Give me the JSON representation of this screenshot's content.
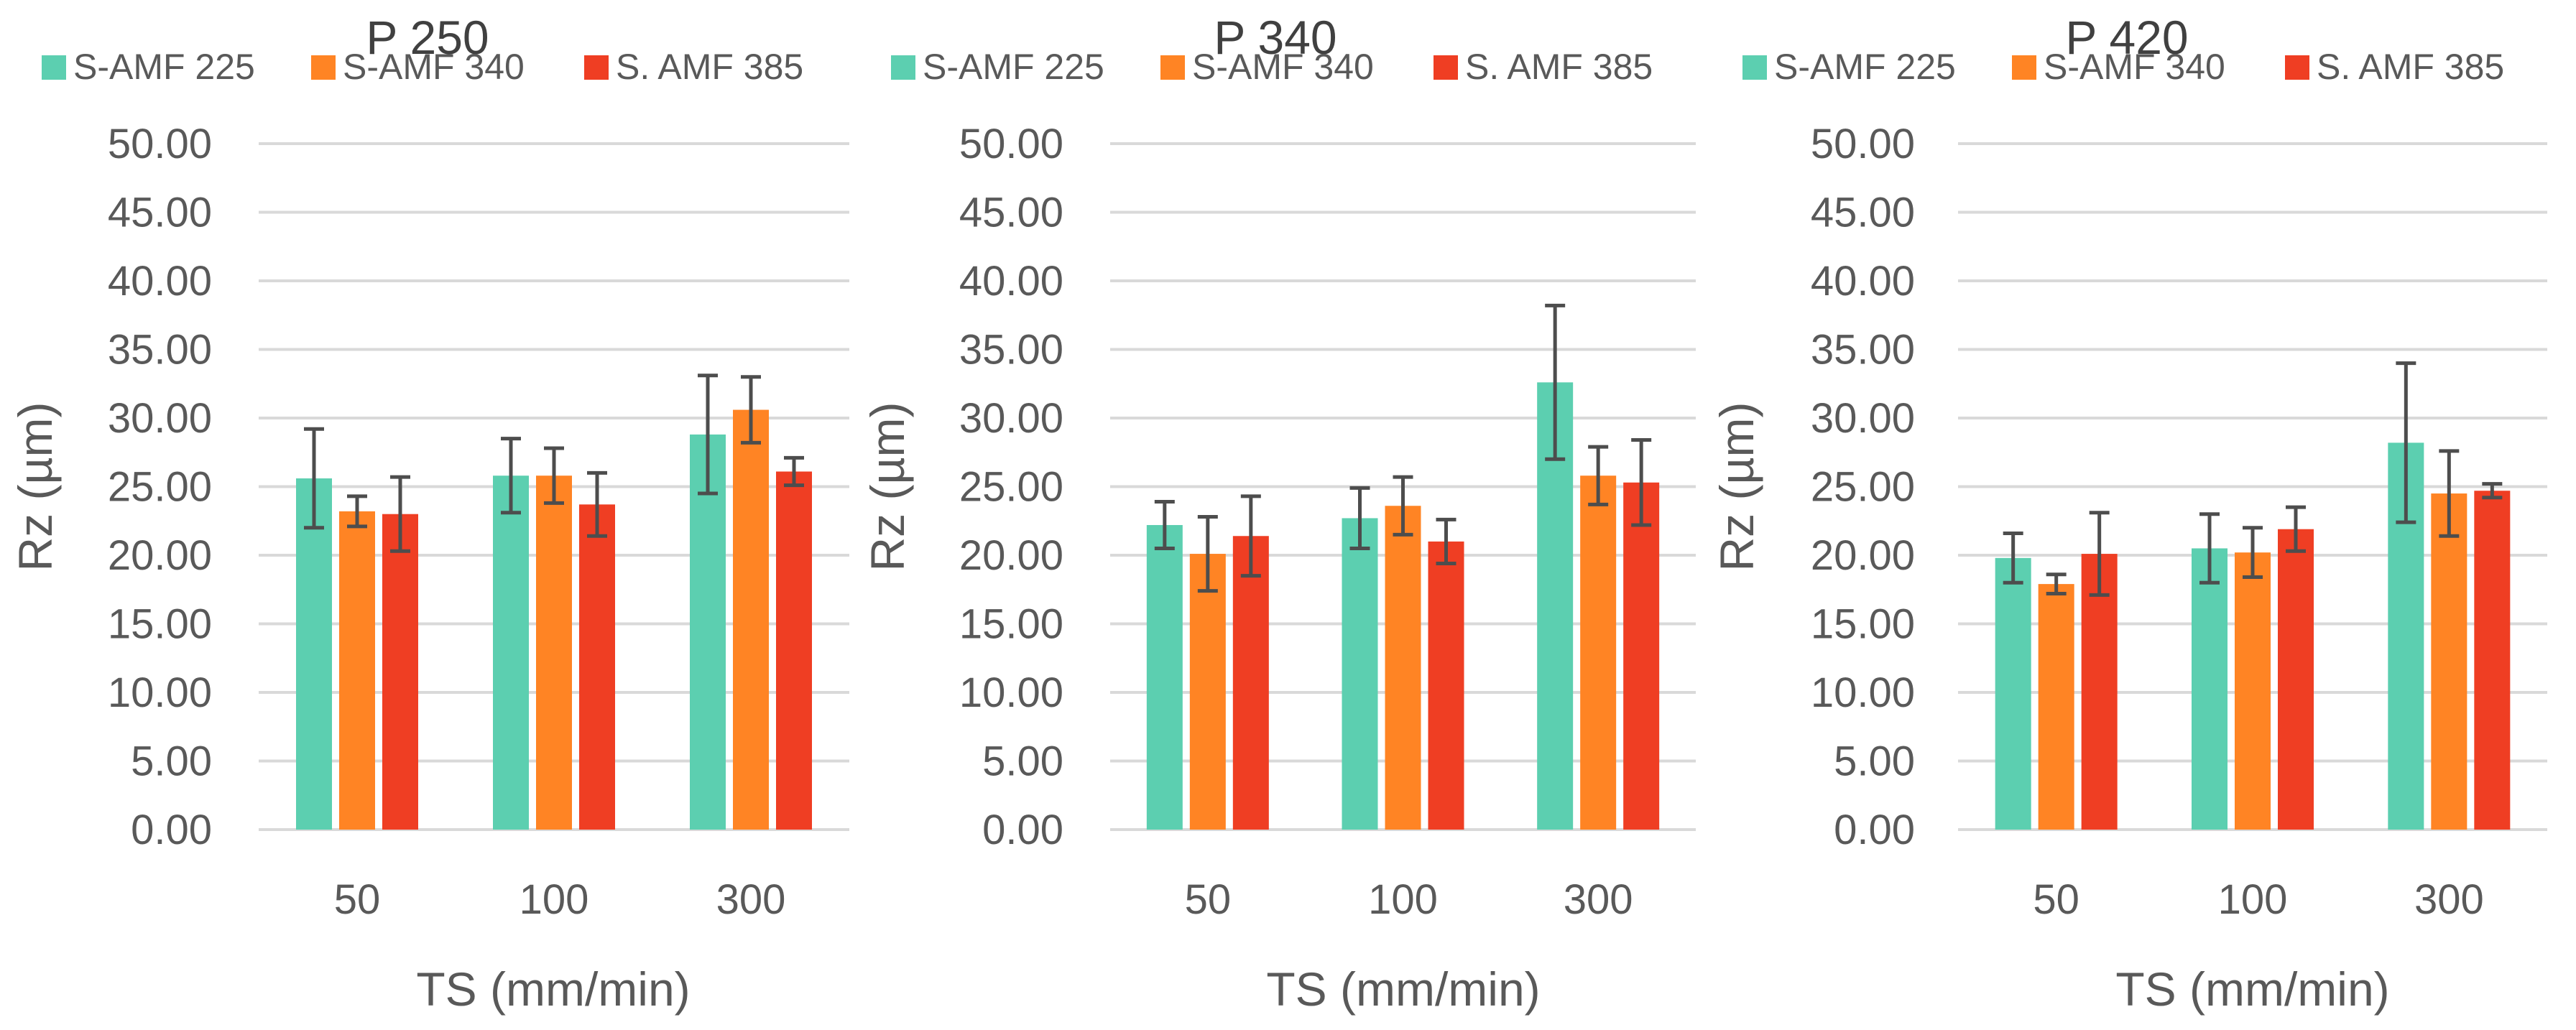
{
  "chart_data": [
    {
      "type": "bar",
      "title": "P 250",
      "xlabel": "TS (mm/min)",
      "ylabel": "Rz (µm)",
      "ylim": [
        0,
        50
      ],
      "yticks": [
        "0.00",
        "5.00",
        "10.00",
        "15.00",
        "20.00",
        "25.00",
        "30.00",
        "35.00",
        "40.00",
        "45.00",
        "50.00"
      ],
      "grid": true,
      "legend": "top",
      "categories": [
        "50",
        "100",
        "300"
      ],
      "series": [
        {
          "name": "S-AMF 225",
          "color": "#5ccfb0",
          "values": [
            25.6,
            25.8,
            28.8
          ],
          "errors": [
            3.6,
            2.7,
            4.3
          ]
        },
        {
          "name": "S-AMF 340",
          "color": "#ff8424",
          "values": [
            23.2,
            25.8,
            30.6
          ],
          "errors": [
            1.1,
            2.0,
            2.4
          ]
        },
        {
          "name": "S. AMF 385",
          "color": "#ef3e23",
          "values": [
            23.0,
            23.7,
            26.1
          ],
          "errors": [
            2.7,
            2.3,
            1.0
          ]
        }
      ]
    },
    {
      "type": "bar",
      "title": "P 340",
      "xlabel": "TS (mm/min)",
      "ylabel": "Rz (µm)",
      "ylim": [
        0,
        50
      ],
      "yticks": [
        "0.00",
        "5.00",
        "10.00",
        "15.00",
        "20.00",
        "25.00",
        "30.00",
        "35.00",
        "40.00",
        "45.00",
        "50.00"
      ],
      "grid": true,
      "legend": "top",
      "categories": [
        "50",
        "100",
        "300"
      ],
      "series": [
        {
          "name": "S-AMF 225",
          "color": "#5ccfb0",
          "values": [
            22.2,
            22.7,
            32.6
          ],
          "errors": [
            1.7,
            2.2,
            5.6
          ]
        },
        {
          "name": "S-AMF 340",
          "color": "#ff8424",
          "values": [
            20.1,
            23.6,
            25.8
          ],
          "errors": [
            2.7,
            2.1,
            2.1
          ]
        },
        {
          "name": "S. AMF 385",
          "color": "#ef3e23",
          "values": [
            21.4,
            21.0,
            25.3
          ],
          "errors": [
            2.9,
            1.6,
            3.1
          ]
        }
      ]
    },
    {
      "type": "bar",
      "title": "P 420",
      "xlabel": "TS (mm/min)",
      "ylabel": "Rz (µm)",
      "ylim": [
        0,
        50
      ],
      "yticks": [
        "0.00",
        "5.00",
        "10.00",
        "15.00",
        "20.00",
        "25.00",
        "30.00",
        "35.00",
        "40.00",
        "45.00",
        "50.00"
      ],
      "grid": true,
      "legend": "top",
      "categories": [
        "50",
        "100",
        "300"
      ],
      "series": [
        {
          "name": "S-AMF 225",
          "color": "#5ccfb0",
          "values": [
            19.8,
            20.5,
            28.2
          ],
          "errors": [
            1.8,
            2.5,
            5.8
          ]
        },
        {
          "name": "S-AMF 340",
          "color": "#ff8424",
          "values": [
            17.9,
            20.2,
            24.5
          ],
          "errors": [
            0.7,
            1.8,
            3.1
          ]
        },
        {
          "name": "S. AMF 385",
          "color": "#ef3e23",
          "values": [
            20.1,
            21.9,
            24.7
          ],
          "errors": [
            3.0,
            1.6,
            0.5
          ]
        }
      ]
    }
  ]
}
